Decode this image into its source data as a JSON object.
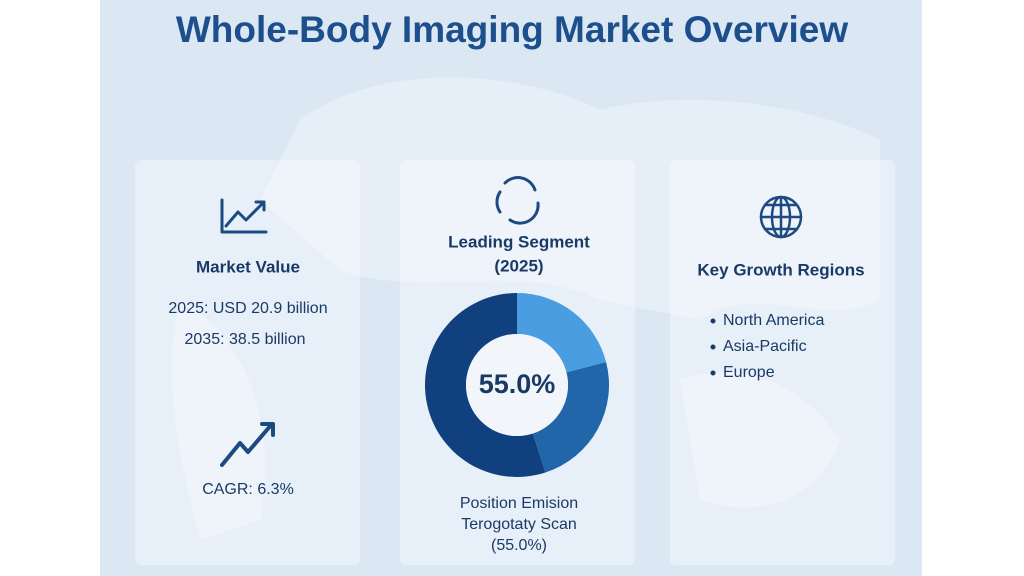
{
  "header": {
    "title": "Whole-Body Imaging Market Overview"
  },
  "market_value": {
    "heading": "Market Value",
    "lines": [
      "2025: USD 20.9 billion",
      "2035: 38.5 billion"
    ],
    "cagr": "CAGR: 6.3%"
  },
  "leading_segment": {
    "heading": [
      "Leading Segment",
      "(2025)"
    ],
    "donut": {
      "type": "pie",
      "values": [
        21,
        24,
        55
      ],
      "colors": [
        "#4a9de0",
        "#2166a8",
        "#10407e"
      ]
    },
    "center_label": "55.0%",
    "caption": [
      "Position Emision",
      "Terogotaty Scan",
      "(55.0%)"
    ]
  },
  "growth_regions": {
    "heading": "Key Growth Regions",
    "items": [
      "North America",
      "Asia-Pacific",
      "Europe"
    ]
  }
}
